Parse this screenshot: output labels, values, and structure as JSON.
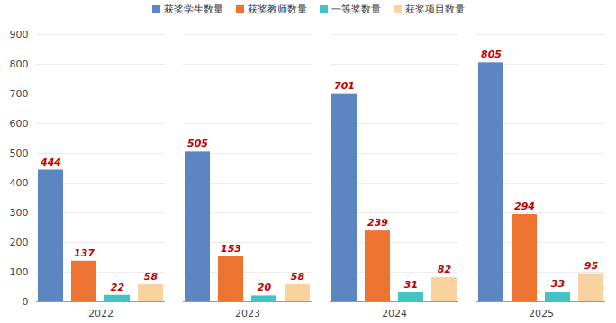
{
  "chart_data": {
    "type": "bar",
    "categories": [
      "2022",
      "2023",
      "2024",
      "2025"
    ],
    "series": [
      {
        "name": "获奖学生数量",
        "color": "#5b86c2",
        "values": [
          444,
          505,
          701,
          805
        ]
      },
      {
        "name": "获奖教师数量",
        "color": "#ec7430",
        "values": [
          137,
          153,
          239,
          294
        ]
      },
      {
        "name": "一等奖数量",
        "color": "#45c4c4",
        "values": [
          22,
          20,
          31,
          33
        ]
      },
      {
        "name": "获奖项目数量",
        "color": "#f8d3a0",
        "values": [
          58,
          58,
          82,
          95
        ]
      }
    ],
    "ylim": [
      0,
      900
    ],
    "yticks": [
      0,
      100,
      200,
      300,
      400,
      500,
      600,
      700,
      800,
      900
    ],
    "grid": true,
    "legend": "top",
    "data_labels": true
  }
}
